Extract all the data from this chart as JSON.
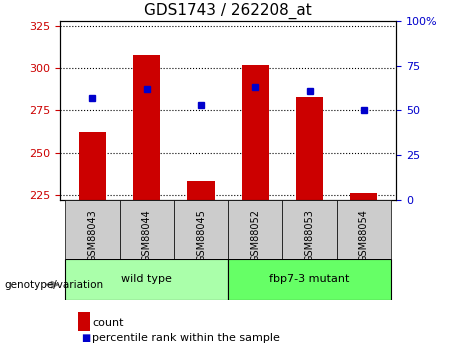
{
  "title": "GDS1743 / 262208_at",
  "categories": [
    "GSM88043",
    "GSM88044",
    "GSM88045",
    "GSM88052",
    "GSM88053",
    "GSM88054"
  ],
  "count_values": [
    262,
    308,
    233,
    302,
    283,
    226
  ],
  "percentile_values": [
    57,
    62,
    53,
    63,
    61,
    50
  ],
  "ylim_left": [
    222,
    328
  ],
  "ylim_right": [
    0,
    100
  ],
  "yticks_left": [
    225,
    250,
    275,
    300,
    325
  ],
  "yticks_right": [
    0,
    25,
    50,
    75,
    100
  ],
  "bar_color": "#cc0000",
  "dot_color": "#0000cc",
  "bar_bottom": 222,
  "grid_color": "#000000",
  "groups": [
    {
      "label": "wild type",
      "indices": [
        0,
        1,
        2
      ],
      "color": "#aaffaa"
    },
    {
      "label": "fbp7-3 mutant",
      "indices": [
        3,
        4,
        5
      ],
      "color": "#66ff66"
    }
  ],
  "group_label": "genotype/variation",
  "legend_count_label": "count",
  "legend_percentile_label": "percentile rank within the sample",
  "tick_label_color_left": "#cc0000",
  "tick_label_color_right": "#0000cc",
  "bg_color": "#ffffff",
  "plot_bg_color": "#ffffff",
  "xlabel_area_color": "#cccccc"
}
